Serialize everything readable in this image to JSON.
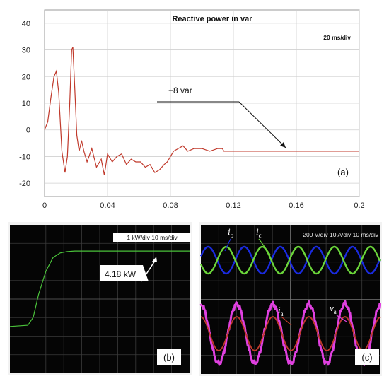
{
  "chart_data": [
    {
      "type": "line",
      "panel_label": "(a)",
      "title": "Reactive power in var",
      "scale_text": "20 ms/div",
      "annotation": "−8 var",
      "xlim": [
        0,
        0.2
      ],
      "ylim": [
        -25,
        45
      ],
      "x_ticks": [
        "0",
        "0.04",
        "0.08",
        "0.12",
        "0.16",
        "0.2"
      ],
      "y_ticks": [
        "40",
        "30",
        "20",
        "10",
        "0",
        "-10",
        "-20"
      ],
      "grid": true,
      "color": "#c0392b",
      "series": [
        {
          "x": [
            0,
            0.002,
            0.004,
            0.006,
            0.0075,
            0.009,
            0.011,
            0.013,
            0.0145,
            0.016,
            0.0172,
            0.018,
            0.019,
            0.0205,
            0.022,
            0.0235,
            0.025,
            0.027,
            0.03,
            0.033,
            0.036,
            0.038,
            0.04,
            0.043,
            0.046,
            0.049,
            0.052,
            0.055,
            0.058,
            0.061,
            0.064,
            0.067,
            0.07,
            0.073,
            0.076,
            0.078,
            0.08,
            0.082,
            0.085,
            0.088,
            0.091,
            0.095,
            0.1,
            0.105,
            0.11,
            0.113,
            0.114,
            0.12,
            0.14,
            0.16,
            0.18,
            0.2
          ],
          "y": [
            0,
            3,
            12,
            20,
            22,
            14,
            -8,
            -16,
            -10,
            10,
            30,
            31,
            18,
            -2,
            -8,
            -4,
            -8,
            -12,
            -7,
            -14,
            -11,
            -17,
            -9,
            -12,
            -10,
            -9,
            -13,
            -11,
            -12,
            -12,
            -14,
            -13,
            -16,
            -15,
            -13,
            -12,
            -10,
            -8,
            -7,
            -6,
            -8,
            -7,
            -7,
            -8,
            -7,
            -7,
            -8,
            -8,
            -8,
            -8,
            -8,
            -8
          ]
        }
      ]
    },
    {
      "type": "line",
      "panel_label": "(b)",
      "scale_text": "1 kW/div   10 ms/div",
      "annotation": "4.18 kW",
      "color": "#4ac23a",
      "series": [
        {
          "x": [
            0,
            1,
            1.3,
            1.6,
            2.0,
            2.4,
            2.8,
            3.2,
            3.6,
            4.0,
            5,
            6,
            7,
            8,
            9,
            10
          ],
          "y": [
            0.9,
            0.95,
            1.3,
            2.3,
            3.3,
            3.9,
            4.1,
            4.16,
            4.18,
            4.18,
            4.18,
            4.18,
            4.18,
            4.18,
            4.18,
            4.18
          ]
        }
      ]
    },
    {
      "type": "line",
      "panel_label": "(c)",
      "scale_text": "200 V/div    10 A/div    10 ms/div",
      "series": [
        {
          "name": "i",
          "subscript": "b",
          "color": "#1a2be0",
          "kind": "sine"
        },
        {
          "name": "i",
          "subscript": "c",
          "color": "#6bd63a",
          "kind": "sine"
        },
        {
          "name": "i",
          "subscript": "a",
          "color": "#c0392b",
          "kind": "sine"
        },
        {
          "name": "v",
          "subscript": "a",
          "color": "#e040e0",
          "kind": "sine"
        }
      ]
    }
  ]
}
